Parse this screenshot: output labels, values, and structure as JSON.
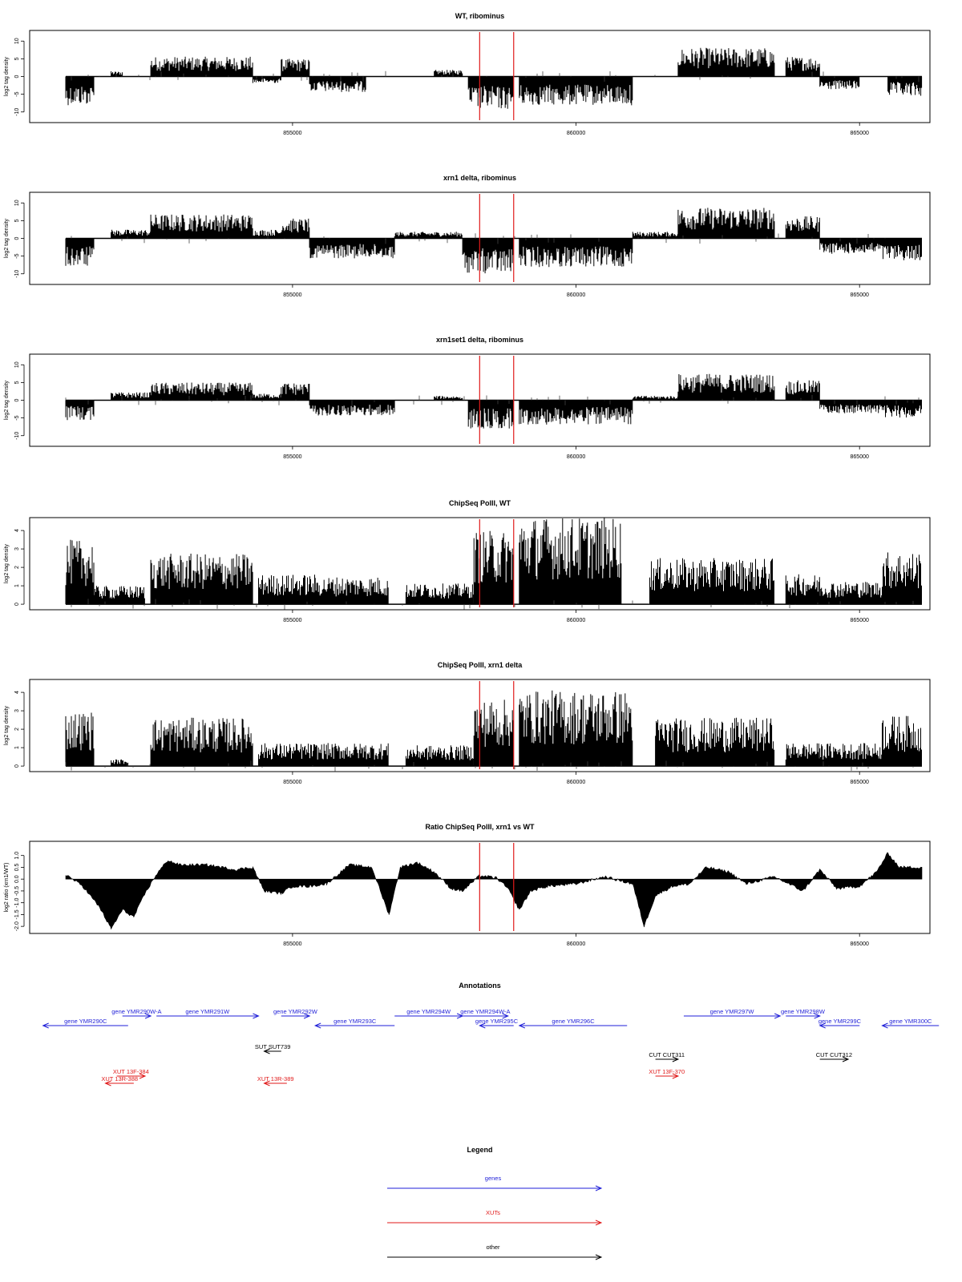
{
  "colors": {
    "genes": "#1f1fd8",
    "xuts": "#e01a1a",
    "other": "#000000",
    "marker": "#e01a1a",
    "signal": "#000000"
  },
  "genome": {
    "start": 851000,
    "end": 866100,
    "xticks": [
      855000,
      860000,
      865000
    ],
    "xtick_labels": [
      "855000",
      "860000",
      "865000"
    ]
  },
  "chart_data": [
    {
      "type": "bar",
      "title": "WT, ribominus",
      "ylabel": "log2 tag density",
      "ylim": [
        -13,
        13
      ],
      "yticks": [
        -10,
        -5,
        0,
        5,
        10
      ],
      "ytick_labels": [
        "-10",
        "-5",
        "0",
        "5",
        "10"
      ],
      "markers": [
        858300,
        858900
      ],
      "segments": [
        {
          "from": 851000,
          "to": 851500,
          "value": -6.5
        },
        {
          "from": 851800,
          "to": 852000,
          "value": 1.2
        },
        {
          "from": 852500,
          "to": 854300,
          "value": 4.5
        },
        {
          "from": 854300,
          "to": 854800,
          "value": -1.5
        },
        {
          "from": 854800,
          "to": 855300,
          "value": 4.0
        },
        {
          "from": 855300,
          "to": 856300,
          "value": -3.5
        },
        {
          "from": 857500,
          "to": 858000,
          "value": 1.5
        },
        {
          "from": 858100,
          "to": 858900,
          "value": -7.5
        },
        {
          "from": 859000,
          "to": 861000,
          "value": -6.5
        },
        {
          "from": 861800,
          "to": 863500,
          "value": 6.5
        },
        {
          "from": 863700,
          "to": 864300,
          "value": 4.5
        },
        {
          "from": 864300,
          "to": 865000,
          "value": -3.0
        },
        {
          "from": 865500,
          "to": 866100,
          "value": -4.5
        }
      ]
    },
    {
      "type": "bar",
      "title": "xrn1 delta, ribominus",
      "ylabel": "log2 tag density",
      "ylim": [
        -13,
        13
      ],
      "yticks": [
        -10,
        -5,
        0,
        5,
        10
      ],
      "ytick_labels": [
        "-10",
        "-5",
        "0",
        "5",
        "10"
      ],
      "markers": [
        858300,
        858900
      ],
      "segments": [
        {
          "from": 851000,
          "to": 851500,
          "value": -6.5
        },
        {
          "from": 851800,
          "to": 852500,
          "value": 2.0
        },
        {
          "from": 852500,
          "to": 854300,
          "value": 5.5
        },
        {
          "from": 854300,
          "to": 854800,
          "value": 2.0
        },
        {
          "from": 854800,
          "to": 855300,
          "value": 4.5
        },
        {
          "from": 855300,
          "to": 856800,
          "value": -4.5
        },
        {
          "from": 856800,
          "to": 858000,
          "value": 1.5
        },
        {
          "from": 858000,
          "to": 858900,
          "value": -8.0
        },
        {
          "from": 859000,
          "to": 861000,
          "value": -6.5
        },
        {
          "from": 861000,
          "to": 861800,
          "value": 1.5
        },
        {
          "from": 861800,
          "to": 863500,
          "value": 7.0
        },
        {
          "from": 863700,
          "to": 864300,
          "value": 5.0
        },
        {
          "from": 864300,
          "to": 865400,
          "value": -3.5
        },
        {
          "from": 865400,
          "to": 866100,
          "value": -5.0
        }
      ]
    },
    {
      "type": "bar",
      "title": "xrn1set1 delta, ribominus",
      "ylabel": "log2 tag density",
      "ylim": [
        -13,
        13
      ],
      "yticks": [
        -10,
        -5,
        0,
        5,
        10
      ],
      "ytick_labels": [
        "-10",
        "-5",
        "0",
        "5",
        "10"
      ],
      "markers": [
        858300,
        858900
      ],
      "segments": [
        {
          "from": 851000,
          "to": 851500,
          "value": -4.5
        },
        {
          "from": 851800,
          "to": 852500,
          "value": 1.8
        },
        {
          "from": 852500,
          "to": 854300,
          "value": 4.0
        },
        {
          "from": 854300,
          "to": 854800,
          "value": 1.5
        },
        {
          "from": 854800,
          "to": 855300,
          "value": 4.0
        },
        {
          "from": 855300,
          "to": 856800,
          "value": -3.5
        },
        {
          "from": 857500,
          "to": 858000,
          "value": 1.0
        },
        {
          "from": 858100,
          "to": 858900,
          "value": -6.5
        },
        {
          "from": 859000,
          "to": 861000,
          "value": -5.5
        },
        {
          "from": 861000,
          "to": 861800,
          "value": 1.0
        },
        {
          "from": 861800,
          "to": 863500,
          "value": 6.0
        },
        {
          "from": 863700,
          "to": 864300,
          "value": 4.5
        },
        {
          "from": 864300,
          "to": 865400,
          "value": -3.0
        },
        {
          "from": 865400,
          "to": 866100,
          "value": -4.0
        }
      ]
    },
    {
      "type": "bar",
      "title": "ChipSeq PolII, WT",
      "ylabel": "log2 tag density",
      "ylim": [
        -0.3,
        4.7
      ],
      "yticks": [
        0,
        1,
        2,
        3,
        4
      ],
      "ytick_labels": [
        "0",
        "1",
        "2",
        "3",
        "4"
      ],
      "markers": [
        858300,
        858900
      ],
      "segments": [
        {
          "from": 851000,
          "to": 851500,
          "value": 2.8
        },
        {
          "from": 851500,
          "to": 852400,
          "value": 0.8
        },
        {
          "from": 852500,
          "to": 854300,
          "value": 2.2
        },
        {
          "from": 854400,
          "to": 855400,
          "value": 1.3
        },
        {
          "from": 855400,
          "to": 856700,
          "value": 1.2
        },
        {
          "from": 857000,
          "to": 858200,
          "value": 0.9
        },
        {
          "from": 858200,
          "to": 858900,
          "value": 3.2
        },
        {
          "from": 859000,
          "to": 860800,
          "value": 3.8
        },
        {
          "from": 861300,
          "to": 863500,
          "value": 2.0
        },
        {
          "from": 863700,
          "to": 864300,
          "value": 1.3
        },
        {
          "from": 864300,
          "to": 865400,
          "value": 1.0
        },
        {
          "from": 865400,
          "to": 866100,
          "value": 2.3
        }
      ]
    },
    {
      "type": "bar",
      "title": "ChipSeq PolII, xrn1 delta",
      "ylabel": "log2 tag density",
      "ylim": [
        -0.3,
        4.7
      ],
      "yticks": [
        0,
        1,
        2,
        3,
        4
      ],
      "ytick_labels": [
        "0",
        "1",
        "2",
        "3",
        "4"
      ],
      "markers": [
        858300,
        858900
      ],
      "segments": [
        {
          "from": 851000,
          "to": 851500,
          "value": 2.4
        },
        {
          "from": 851800,
          "to": 852100,
          "value": 0.3
        },
        {
          "from": 852500,
          "to": 854300,
          "value": 2.1
        },
        {
          "from": 854400,
          "to": 855400,
          "value": 1.0
        },
        {
          "from": 855400,
          "to": 856700,
          "value": 1.0
        },
        {
          "from": 857000,
          "to": 858200,
          "value": 0.9
        },
        {
          "from": 858200,
          "to": 858900,
          "value": 2.9
        },
        {
          "from": 859000,
          "to": 861000,
          "value": 3.3
        },
        {
          "from": 861400,
          "to": 863500,
          "value": 2.1
        },
        {
          "from": 863700,
          "to": 864300,
          "value": 1.0
        },
        {
          "from": 864300,
          "to": 865400,
          "value": 1.0
        },
        {
          "from": 865400,
          "to": 866100,
          "value": 2.2
        }
      ]
    },
    {
      "type": "area",
      "title": "Ratio ChipSeq PolII, xrn1 vs WT",
      "ylabel": "log2 ratio (xrn1/WT)",
      "ylim": [
        -2.3,
        1.6
      ],
      "yticks": [
        -2.0,
        -1.5,
        -1.0,
        -0.5,
        0.0,
        0.5,
        1.0
      ],
      "ytick_labels": [
        "-2.0",
        "-1.5",
        "-1.0",
        "-0.5",
        "0.0",
        "0.5",
        "1.0"
      ],
      "markers": [
        858300,
        858900
      ],
      "x": [
        851000,
        851300,
        851600,
        851800,
        852000,
        852200,
        852400,
        852600,
        852800,
        853000,
        853500,
        854000,
        854300,
        854500,
        854800,
        855000,
        855300,
        855600,
        856000,
        856400,
        856700,
        856900,
        857200,
        857500,
        857800,
        858000,
        858300,
        858600,
        858800,
        859000,
        859200,
        859500,
        860000,
        860500,
        861000,
        861200,
        861400,
        861700,
        862000,
        862300,
        862700,
        863000,
        863500,
        864000,
        864300,
        864600,
        865000,
        865300,
        865500,
        865700,
        866100
      ],
      "y": [
        0.2,
        -0.3,
        -1.2,
        -2.1,
        -1.3,
        -1.6,
        -0.6,
        0.2,
        0.8,
        0.6,
        0.6,
        0.4,
        0.5,
        -0.5,
        -0.6,
        -0.3,
        -0.3,
        -0.2,
        0.6,
        0.5,
        -1.5,
        0.5,
        0.7,
        0.3,
        -0.4,
        -0.5,
        0.15,
        0.05,
        -0.4,
        -1.3,
        -0.5,
        -0.3,
        -0.2,
        0.1,
        -0.2,
        -2.0,
        -0.7,
        -0.3,
        -0.2,
        0.5,
        0.3,
        -0.2,
        0.1,
        -0.5,
        0.4,
        -0.4,
        -0.3,
        0.3,
        1.1,
        0.5,
        0.5
      ]
    }
  ],
  "annotations": {
    "title": "Annotations",
    "items": [
      {
        "label": "gene YMR290W-A",
        "type": "genes",
        "dir": 1,
        "from": 852000,
        "to": 852500,
        "row": 0
      },
      {
        "label": "gene YMR290C",
        "type": "genes",
        "dir": -1,
        "from": 850600,
        "to": 852100,
        "row": 1
      },
      {
        "label": "gene YMR291W",
        "type": "genes",
        "dir": 1,
        "from": 852600,
        "to": 854400,
        "row": 0
      },
      {
        "label": "gene YMR292W",
        "type": "genes",
        "dir": 1,
        "from": 854800,
        "to": 855300,
        "row": 0
      },
      {
        "label": "gene YMR293C",
        "type": "genes",
        "dir": -1,
        "from": 855400,
        "to": 856800,
        "row": 1
      },
      {
        "label": "gene YMR294W",
        "type": "genes",
        "dir": 1,
        "from": 856800,
        "to": 858000,
        "row": 0
      },
      {
        "label": "gene YMR294W-A",
        "type": "genes",
        "dir": 1,
        "from": 858000,
        "to": 858800,
        "row": 0
      },
      {
        "label": "gene YMR295C",
        "type": "genes",
        "dir": -1,
        "from": 858300,
        "to": 858900,
        "row": 1
      },
      {
        "label": "gene YMR296C",
        "type": "genes",
        "dir": -1,
        "from": 859000,
        "to": 860900,
        "row": 1
      },
      {
        "label": "gene YMR297W",
        "type": "genes",
        "dir": 1,
        "from": 861900,
        "to": 863600,
        "row": 0
      },
      {
        "label": "gene YMR298W",
        "type": "genes",
        "dir": 1,
        "from": 863700,
        "to": 864300,
        "row": 0
      },
      {
        "label": "gene YMR299C",
        "type": "genes",
        "dir": -1,
        "from": 864300,
        "to": 865000,
        "row": 1
      },
      {
        "label": "gene YMR300C",
        "type": "genes",
        "dir": -1,
        "from": 865400,
        "to": 866400,
        "row": 1
      },
      {
        "label": "SUT SUT739",
        "type": "other",
        "dir": -1,
        "from": 854500,
        "to": 854800,
        "row": 3
      },
      {
        "label": "CUT CUT311",
        "type": "other",
        "dir": 1,
        "from": 861400,
        "to": 861800,
        "row": 4
      },
      {
        "label": "CUT CUT312",
        "type": "other",
        "dir": 1,
        "from": 864300,
        "to": 864800,
        "row": 4
      },
      {
        "label": "XUT 13F-384",
        "type": "xuts",
        "dir": 1,
        "from": 851900,
        "to": 852400,
        "row": 5
      },
      {
        "label": "XUT 13R-388",
        "type": "xuts",
        "dir": -1,
        "from": 851700,
        "to": 852200,
        "row": 6
      },
      {
        "label": "XUT 13R-389",
        "type": "xuts",
        "dir": -1,
        "from": 854500,
        "to": 854900,
        "row": 6
      },
      {
        "label": "XUT 13F-370",
        "type": "xuts",
        "dir": 1,
        "from": 861400,
        "to": 861800,
        "row": 5
      }
    ]
  },
  "legend": {
    "title": "Legend",
    "items": [
      {
        "label": "genes",
        "type": "genes"
      },
      {
        "label": "XUTs",
        "type": "xuts"
      },
      {
        "label": "other",
        "type": "other"
      }
    ]
  }
}
